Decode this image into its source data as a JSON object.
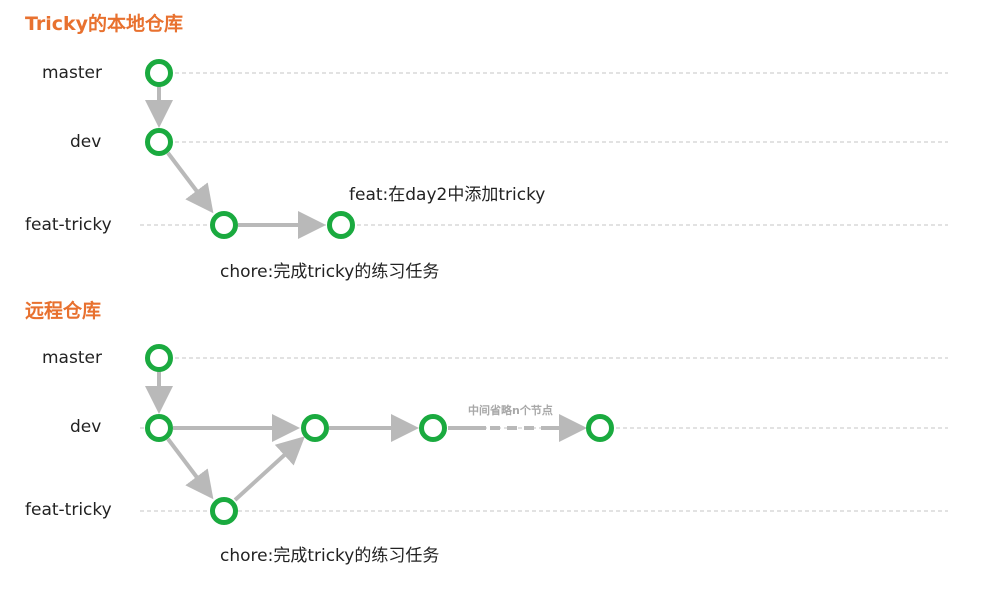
{
  "colors": {
    "title": "#e8712f",
    "node": "#1aaa3f",
    "arrow": "#b9b9b9",
    "guide": "#c4c4c4",
    "text": "#222222",
    "note": "#a8a8a8"
  },
  "local": {
    "title": "Tricky的本地仓库",
    "branches": [
      "master",
      "dev",
      "feat-tricky"
    ],
    "commits": {
      "chore": "chore:完成tricky的练习任务",
      "feat": "feat:在day2中添加tricky"
    }
  },
  "remote": {
    "title": "远程仓库",
    "branches": [
      "master",
      "dev",
      "feat-tricky"
    ],
    "commits": {
      "chore": "chore:完成tricky的练习任务"
    },
    "omitted_note": "中间省略n个节点"
  }
}
